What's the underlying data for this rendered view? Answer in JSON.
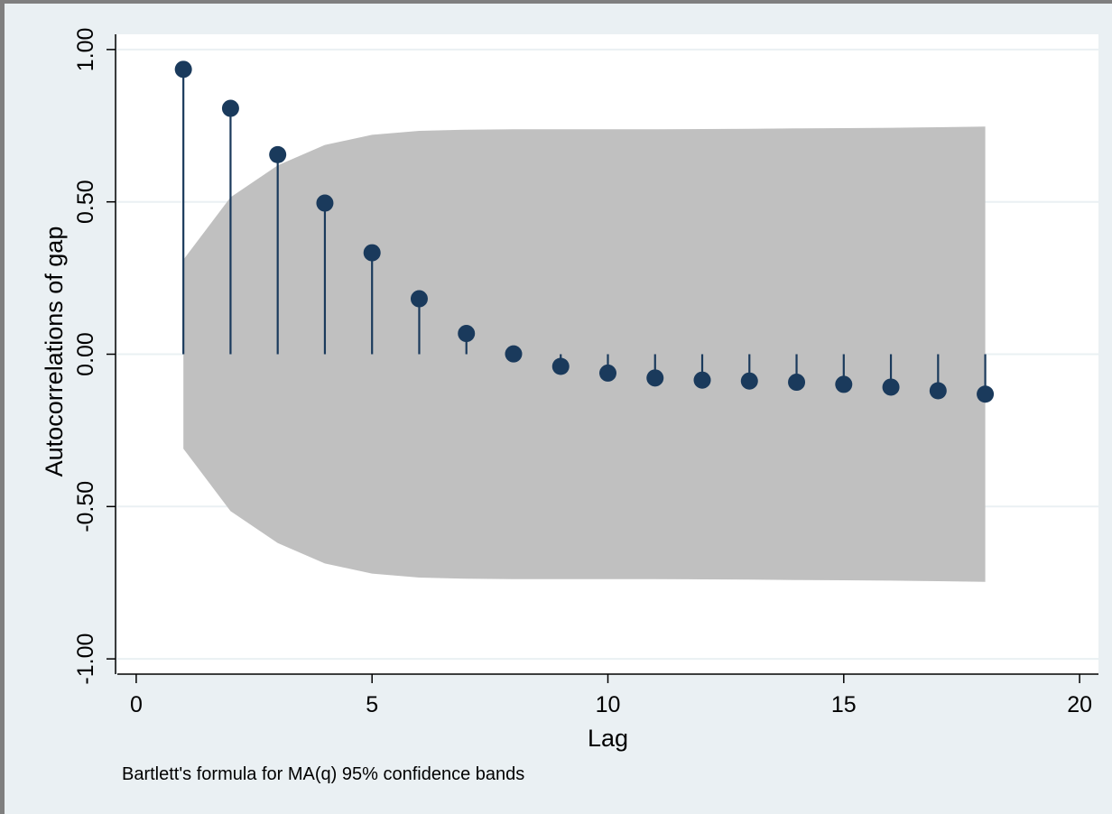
{
  "chart_data": {
    "type": "scatter",
    "style": "stem",
    "xlabel": "Lag",
    "ylabel": "Autocorrelations of gap",
    "note": "Bartlett's formula for MA(q) 95% confidence bands",
    "xlim": [
      -0.4,
      20.4
    ],
    "ylim": [
      -1.05,
      1.05
    ],
    "xticks": [
      0,
      5,
      10,
      15,
      20
    ],
    "yticks": [
      -1.0,
      -0.5,
      0.0,
      0.5,
      1.0
    ],
    "ytick_labels": [
      "-1.00",
      "-0.50",
      "0.00",
      "0.50",
      "1.00"
    ],
    "grid": true,
    "x": [
      1,
      2,
      3,
      4,
      5,
      6,
      7,
      8,
      9,
      10,
      11,
      12,
      13,
      14,
      15,
      16,
      17,
      18
    ],
    "acf": [
      0.935,
      0.807,
      0.655,
      0.496,
      0.333,
      0.182,
      0.068,
      0.001,
      -0.04,
      -0.062,
      -0.078,
      -0.085,
      -0.088,
      -0.092,
      -0.099,
      -0.108,
      -0.12,
      -0.131
    ],
    "confidence_band_upper": [
      0.31,
      0.515,
      0.62,
      0.687,
      0.72,
      0.733,
      0.737,
      0.738,
      0.738,
      0.738,
      0.738,
      0.739,
      0.74,
      0.741,
      0.742,
      0.743,
      0.745,
      0.747
    ],
    "confidence_band_lower": [
      -0.31,
      -0.515,
      -0.62,
      -0.687,
      -0.72,
      -0.733,
      -0.737,
      -0.738,
      -0.738,
      -0.738,
      -0.738,
      -0.739,
      -0.74,
      -0.741,
      -0.742,
      -0.743,
      -0.745,
      -0.747
    ]
  },
  "colors": {
    "outer_background": "#eaf0f3",
    "plot_background": "#ffffff",
    "band_fill": "#c0c0c0",
    "marker": "#1a3a5c",
    "stem": "#1a3a5c",
    "gridline": "#eaf0f3",
    "axis": "#000000"
  }
}
